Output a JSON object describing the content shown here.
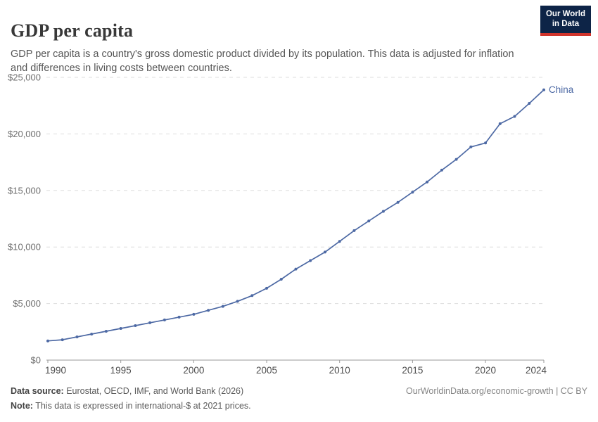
{
  "header": {
    "title": "GDP per capita",
    "subtitle": "GDP per capita is a country's gross domestic product divided by its population. This data is adjusted for inflation and differences in living costs between countries.",
    "logo": {
      "line1": "Our World",
      "line2": "in Data",
      "bg_color": "#0d2447",
      "bar_color": "#d0342c"
    }
  },
  "chart_data": {
    "type": "line",
    "title": "GDP per capita",
    "xlabel": "",
    "ylabel": "",
    "x": [
      1990,
      1991,
      1992,
      1993,
      1994,
      1995,
      1996,
      1997,
      1998,
      1999,
      2000,
      2001,
      2002,
      2003,
      2004,
      2005,
      2006,
      2007,
      2008,
      2009,
      2010,
      2011,
      2012,
      2013,
      2014,
      2015,
      2016,
      2017,
      2018,
      2019,
      2020,
      2021,
      2022,
      2023,
      2024
    ],
    "series": [
      {
        "name": "China",
        "color": "#4d69a4",
        "values": [
          1700,
          1800,
          2050,
          2300,
          2550,
          2800,
          3050,
          3300,
          3550,
          3800,
          4050,
          4400,
          4750,
          5200,
          5700,
          6350,
          7150,
          8050,
          8800,
          9550,
          10500,
          11450,
          12300,
          13150,
          13950,
          14850,
          15750,
          16800,
          17750,
          18850,
          19200,
          20900,
          21550,
          22700,
          23900
        ]
      }
    ],
    "y_ticks": [
      {
        "value": 0,
        "label": "$0"
      },
      {
        "value": 5000,
        "label": "$5,000"
      },
      {
        "value": 10000,
        "label": "$10,000"
      },
      {
        "value": 15000,
        "label": "$15,000"
      },
      {
        "value": 20000,
        "label": "$20,000"
      },
      {
        "value": 25000,
        "label": "$25,000"
      }
    ],
    "x_ticks": [
      1990,
      1995,
      2000,
      2005,
      2010,
      2015,
      2020,
      2024
    ],
    "xlim": [
      1990,
      2024
    ],
    "ylim": [
      0,
      25000
    ],
    "grid": "horizontal-dashed",
    "legend_position": "end-of-line-label",
    "grid_color": "#dddddd",
    "axis_color": "#9a9a9a",
    "y_label_color": "#6e6e6e",
    "x_label_color": "#4d4d4d",
    "marker": "dot"
  },
  "footer": {
    "source_label": "Data source:",
    "source_text": " Eurostat, OECD, IMF, and World Bank (2026)",
    "note_label": "Note:",
    "note_text": " This data is expressed in international-$ at 2021 prices.",
    "link_text": "OurWorldinData.org/economic-growth | CC BY"
  }
}
